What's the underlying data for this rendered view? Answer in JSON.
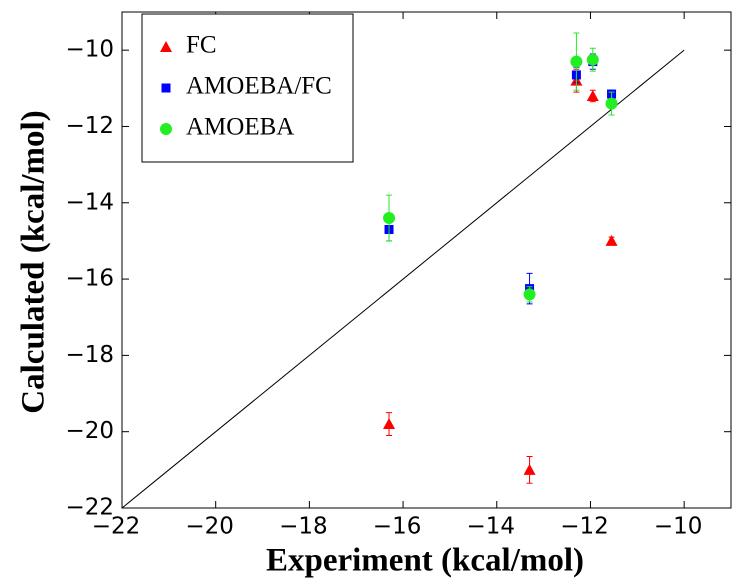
{
  "chart_data": {
    "type": "scatter",
    "xlabel": "Experiment (kcal/mol)",
    "ylabel": "Calculated (kcal/mol)",
    "x": [
      -16.3,
      -13.3,
      -12.3,
      -11.95,
      -11.55
    ],
    "series": [
      {
        "name": "FC",
        "color": "#ff0000",
        "marker": "triangle",
        "values": [
          -19.8,
          -21.0,
          -10.8,
          -11.2,
          -15.0
        ],
        "errors": [
          0.3,
          0.35,
          0.3,
          0.15,
          0.1
        ]
      },
      {
        "name": "AMOEBA/FC",
        "color": "#0000ff",
        "marker": "square",
        "values": [
          -14.7,
          -16.25,
          -10.65,
          -10.3,
          -11.15
        ],
        "errors": [
          0.3,
          0.4,
          0.2,
          0.2,
          0.1
        ]
      },
      {
        "name": "AMOEBA",
        "color": "#22ee22",
        "marker": "circle",
        "values": [
          -14.4,
          -16.4,
          -10.3,
          -10.25,
          -11.4
        ],
        "errors": [
          0.6,
          0.2,
          0.75,
          0.3,
          0.3
        ]
      }
    ],
    "reference_line": {
      "x": [
        -22,
        -10
      ],
      "y": [
        -22,
        -10
      ]
    },
    "xlim": [
      -22,
      -9
    ],
    "ylim": [
      -22,
      -9
    ],
    "xticks": [
      {
        "value": -22,
        "label": "−22"
      },
      {
        "value": -20,
        "label": "−20"
      },
      {
        "value": -18,
        "label": "−18"
      },
      {
        "value": -16,
        "label": "−16"
      },
      {
        "value": -14,
        "label": "−14"
      },
      {
        "value": -12,
        "label": "−12"
      },
      {
        "value": -10,
        "label": "−10"
      }
    ],
    "yticks": [
      {
        "value": -22,
        "label": "−22"
      },
      {
        "value": -20,
        "label": "−20"
      },
      {
        "value": -18,
        "label": "−18"
      },
      {
        "value": -16,
        "label": "−16"
      },
      {
        "value": -14,
        "label": "−14"
      },
      {
        "value": -12,
        "label": "−12"
      },
      {
        "value": -10,
        "label": "−10"
      }
    ],
    "legend": "upper left",
    "grid": false
  }
}
